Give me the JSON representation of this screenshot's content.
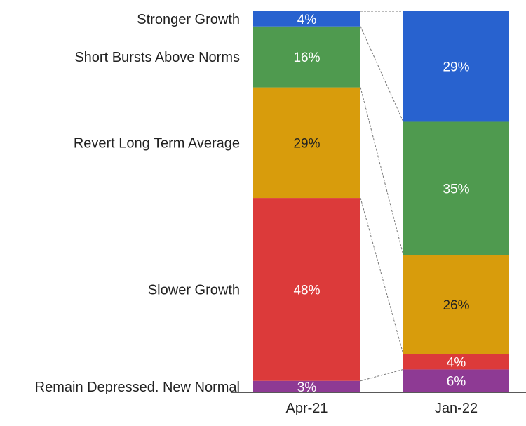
{
  "chart_data": {
    "type": "bar",
    "stacked": true,
    "normalized": true,
    "categories": [
      "Apr-21",
      "Jan-22"
    ],
    "series": [
      {
        "name": "Remain Depressed. New Normal",
        "values": [
          3,
          6
        ],
        "color": "#8e3a94",
        "label_color": "#ffffff"
      },
      {
        "name": "Slower Growth",
        "values": [
          48,
          4
        ],
        "color": "#dc3a3a",
        "label_color": "#ffffff"
      },
      {
        "name": "Revert Long Term Average",
        "values": [
          29,
          26
        ],
        "color": "#d89c0c",
        "label_color": "#222222"
      },
      {
        "name": "Short Bursts Above Norms",
        "values": [
          16,
          35
        ],
        "color": "#4f9a4f",
        "label_color": "#ffffff"
      },
      {
        "name": "Stronger Growth",
        "values": [
          4,
          29
        ],
        "color": "#2862cf",
        "label_color": "#ffffff"
      }
    ],
    "value_suffix": "%",
    "connector_lines": true,
    "grid": false,
    "legend": "left-labels"
  }
}
